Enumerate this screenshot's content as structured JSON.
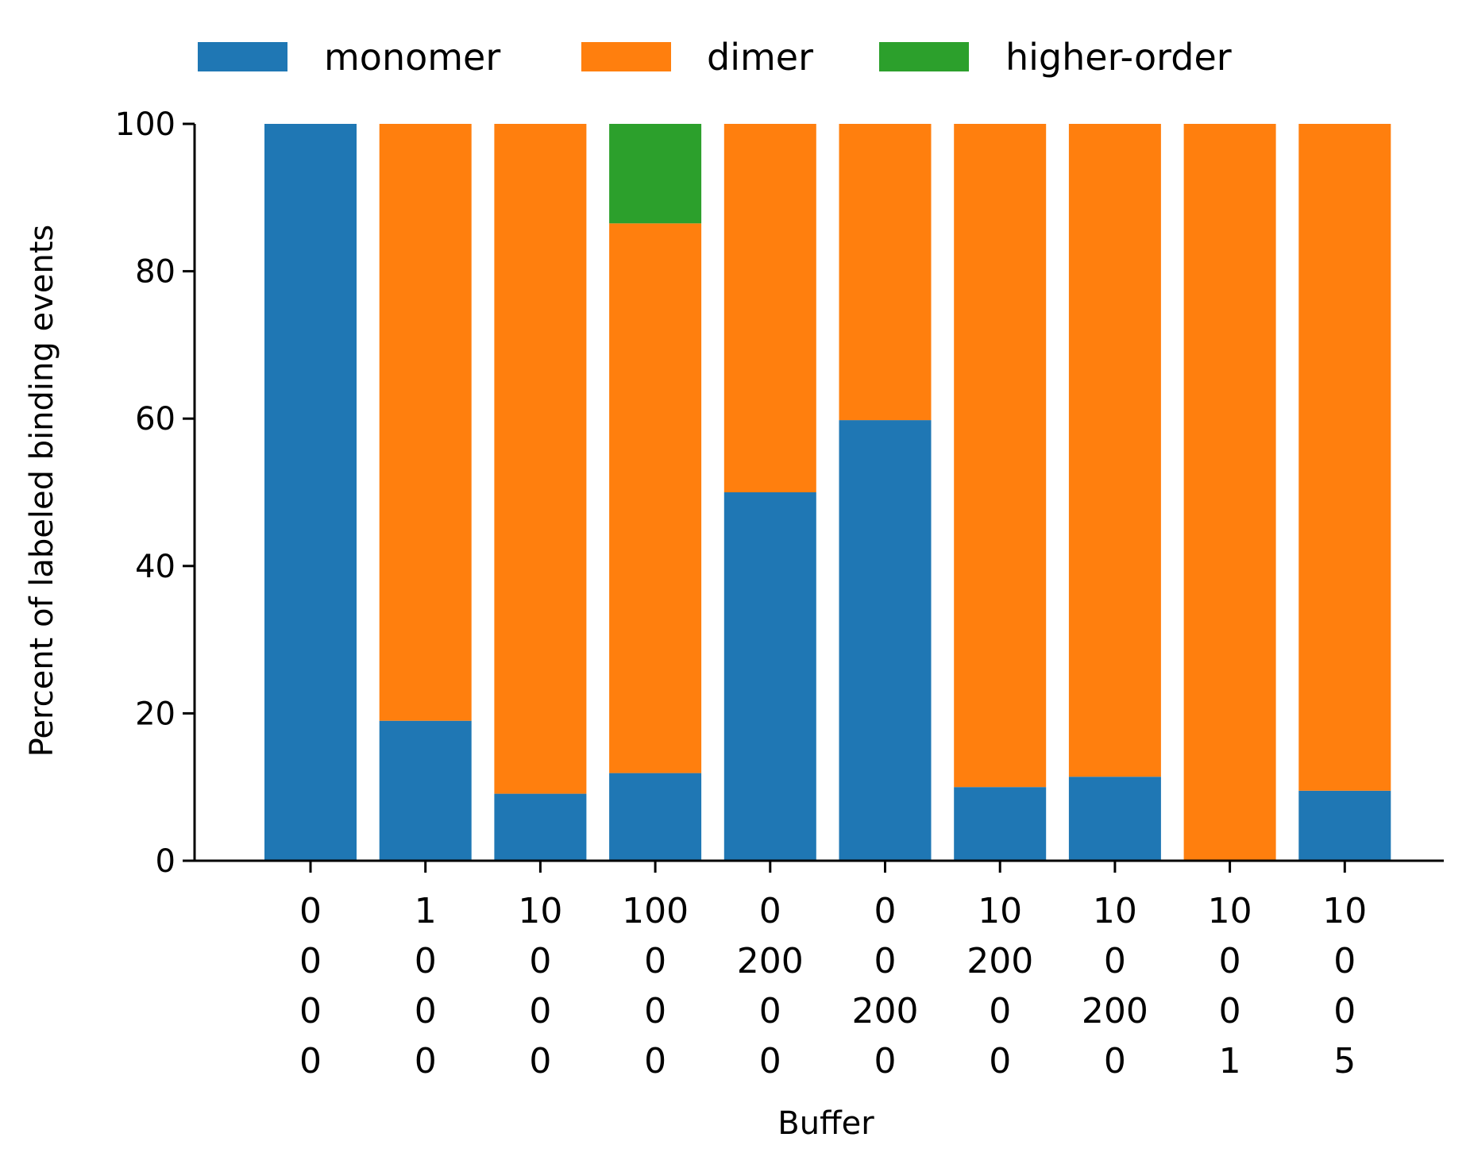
{
  "chart_data": {
    "type": "bar",
    "stacked": true,
    "categories": [
      [
        "0",
        "0",
        "0",
        "0"
      ],
      [
        "1",
        "0",
        "0",
        "0"
      ],
      [
        "10",
        "0",
        "0",
        "0"
      ],
      [
        "100",
        "0",
        "0",
        "0"
      ],
      [
        "0",
        "200",
        "0",
        "0"
      ],
      [
        "0",
        "0",
        "200",
        "0"
      ],
      [
        "10",
        "200",
        "0",
        "0"
      ],
      [
        "10",
        "0",
        "200",
        "0"
      ],
      [
        "10",
        "0",
        "0",
        "1"
      ],
      [
        "10",
        "0",
        "0",
        "5"
      ]
    ],
    "series": [
      {
        "name": "monomer",
        "color": "#1f77b4",
        "values": [
          100,
          19,
          9.1,
          11.9,
          50,
          59.8,
          10,
          11.4,
          0,
          9.5
        ]
      },
      {
        "name": "dimer",
        "color": "#ff7f0e",
        "values": [
          0,
          81,
          90.9,
          74.6,
          50,
          40.2,
          90,
          88.6,
          100,
          90.5
        ]
      },
      {
        "name": "higher-order",
        "color": "#2ca02c",
        "values": [
          0,
          0,
          0,
          13.5,
          0,
          0,
          0,
          0,
          0,
          0
        ]
      }
    ],
    "xlabel": "Buffer",
    "ylabel": "Percent of labeled binding events",
    "ylim": [
      0,
      100
    ],
    "yticks": [
      "0",
      "20",
      "40",
      "60",
      "80",
      "100"
    ],
    "grid": false,
    "legend_position": "top"
  }
}
